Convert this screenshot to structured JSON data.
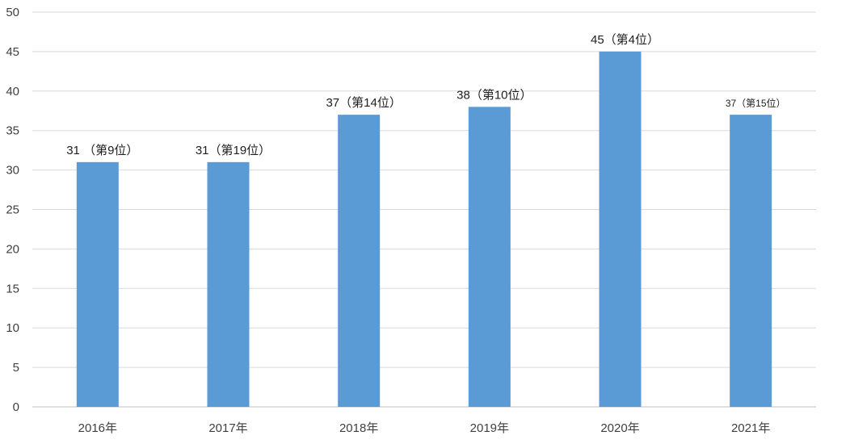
{
  "chart_data": {
    "type": "bar",
    "categories": [
      "2016年",
      "2017年",
      "2018年",
      "2019年",
      "2020年",
      "2021年"
    ],
    "values": [
      31,
      31,
      37,
      38,
      45,
      37
    ],
    "data_labels": [
      "31 （第9位）",
      "31（第19位）",
      "37（第14位）",
      "38（第10位）",
      "45（第4位）",
      "37（第15位）"
    ],
    "ylim": [
      0,
      50
    ],
    "yticks": [
      0,
      5,
      10,
      15,
      20,
      25,
      30,
      35,
      40,
      45,
      50
    ],
    "grid": true,
    "bar_color": "#5b9bd5",
    "title": "",
    "xlabel": "",
    "ylabel": ""
  }
}
